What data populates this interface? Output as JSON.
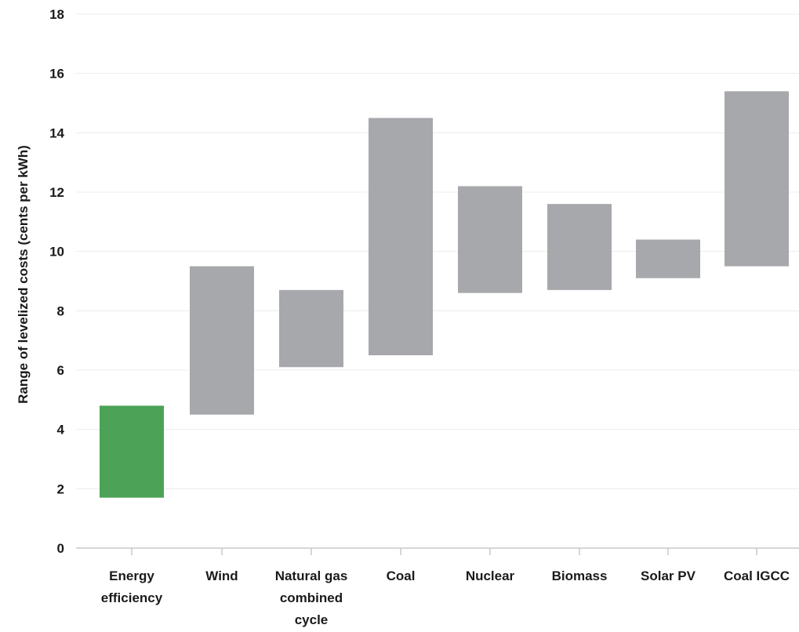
{
  "chart_data": {
    "type": "bar",
    "subtype": "floating-range",
    "title": "",
    "xlabel": "",
    "ylabel": "Range of levelized costs (cents per kWh)",
    "ylim": [
      0,
      18
    ],
    "yticks": [
      0,
      2,
      4,
      6,
      8,
      10,
      12,
      14,
      16,
      18
    ],
    "grid": true,
    "categories": [
      {
        "label": "Energy efficiency",
        "lines": [
          "Energy",
          "efficiency"
        ]
      },
      {
        "label": "Wind",
        "lines": [
          "Wind"
        ]
      },
      {
        "label": "Natural gas combined cycle",
        "lines": [
          "Natural gas",
          "combined",
          "cycle"
        ]
      },
      {
        "label": "Coal",
        "lines": [
          "Coal"
        ]
      },
      {
        "label": "Nuclear",
        "lines": [
          "Nuclear"
        ]
      },
      {
        "label": "Biomass",
        "lines": [
          "Biomass"
        ]
      },
      {
        "label": "Solar PV",
        "lines": [
          "Solar PV"
        ]
      },
      {
        "label": "Coal IGCC",
        "lines": [
          "Coal IGCC"
        ]
      }
    ],
    "ranges": [
      {
        "low": 1.7,
        "high": 4.8
      },
      {
        "low": 4.5,
        "high": 9.5
      },
      {
        "low": 6.1,
        "high": 8.7
      },
      {
        "low": 6.5,
        "high": 14.5
      },
      {
        "low": 8.6,
        "high": 12.2
      },
      {
        "low": 8.7,
        "high": 11.6
      },
      {
        "low": 9.1,
        "high": 10.4
      },
      {
        "low": 9.5,
        "high": 15.4
      }
    ],
    "colors": {
      "highlight": "#4ca256",
      "default": "#a6a8ab"
    },
    "highlight_index": 0
  }
}
